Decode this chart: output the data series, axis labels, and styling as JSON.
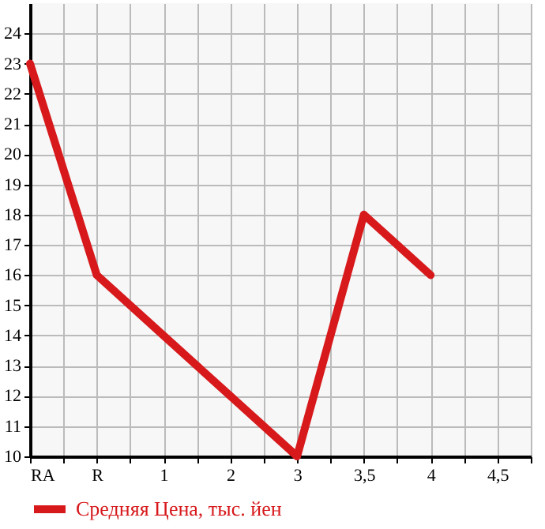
{
  "chart_data": {
    "type": "line",
    "categories": [
      "RA",
      "R",
      "1",
      "2",
      "3",
      "3,5",
      "4",
      "4,5"
    ],
    "series": [
      {
        "name": "Средняя Цена, тыс. йен",
        "color": "#d7191c",
        "values": [
          23,
          16,
          14,
          12,
          10,
          18,
          16,
          null
        ]
      }
    ],
    "ylim": [
      10,
      25
    ],
    "yticks": [
      10,
      11,
      12,
      13,
      14,
      15,
      16,
      17,
      18,
      19,
      20,
      21,
      22,
      23,
      24
    ],
    "grid": true,
    "legend": "bottom left",
    "marker": "none",
    "line_style": "solid"
  }
}
